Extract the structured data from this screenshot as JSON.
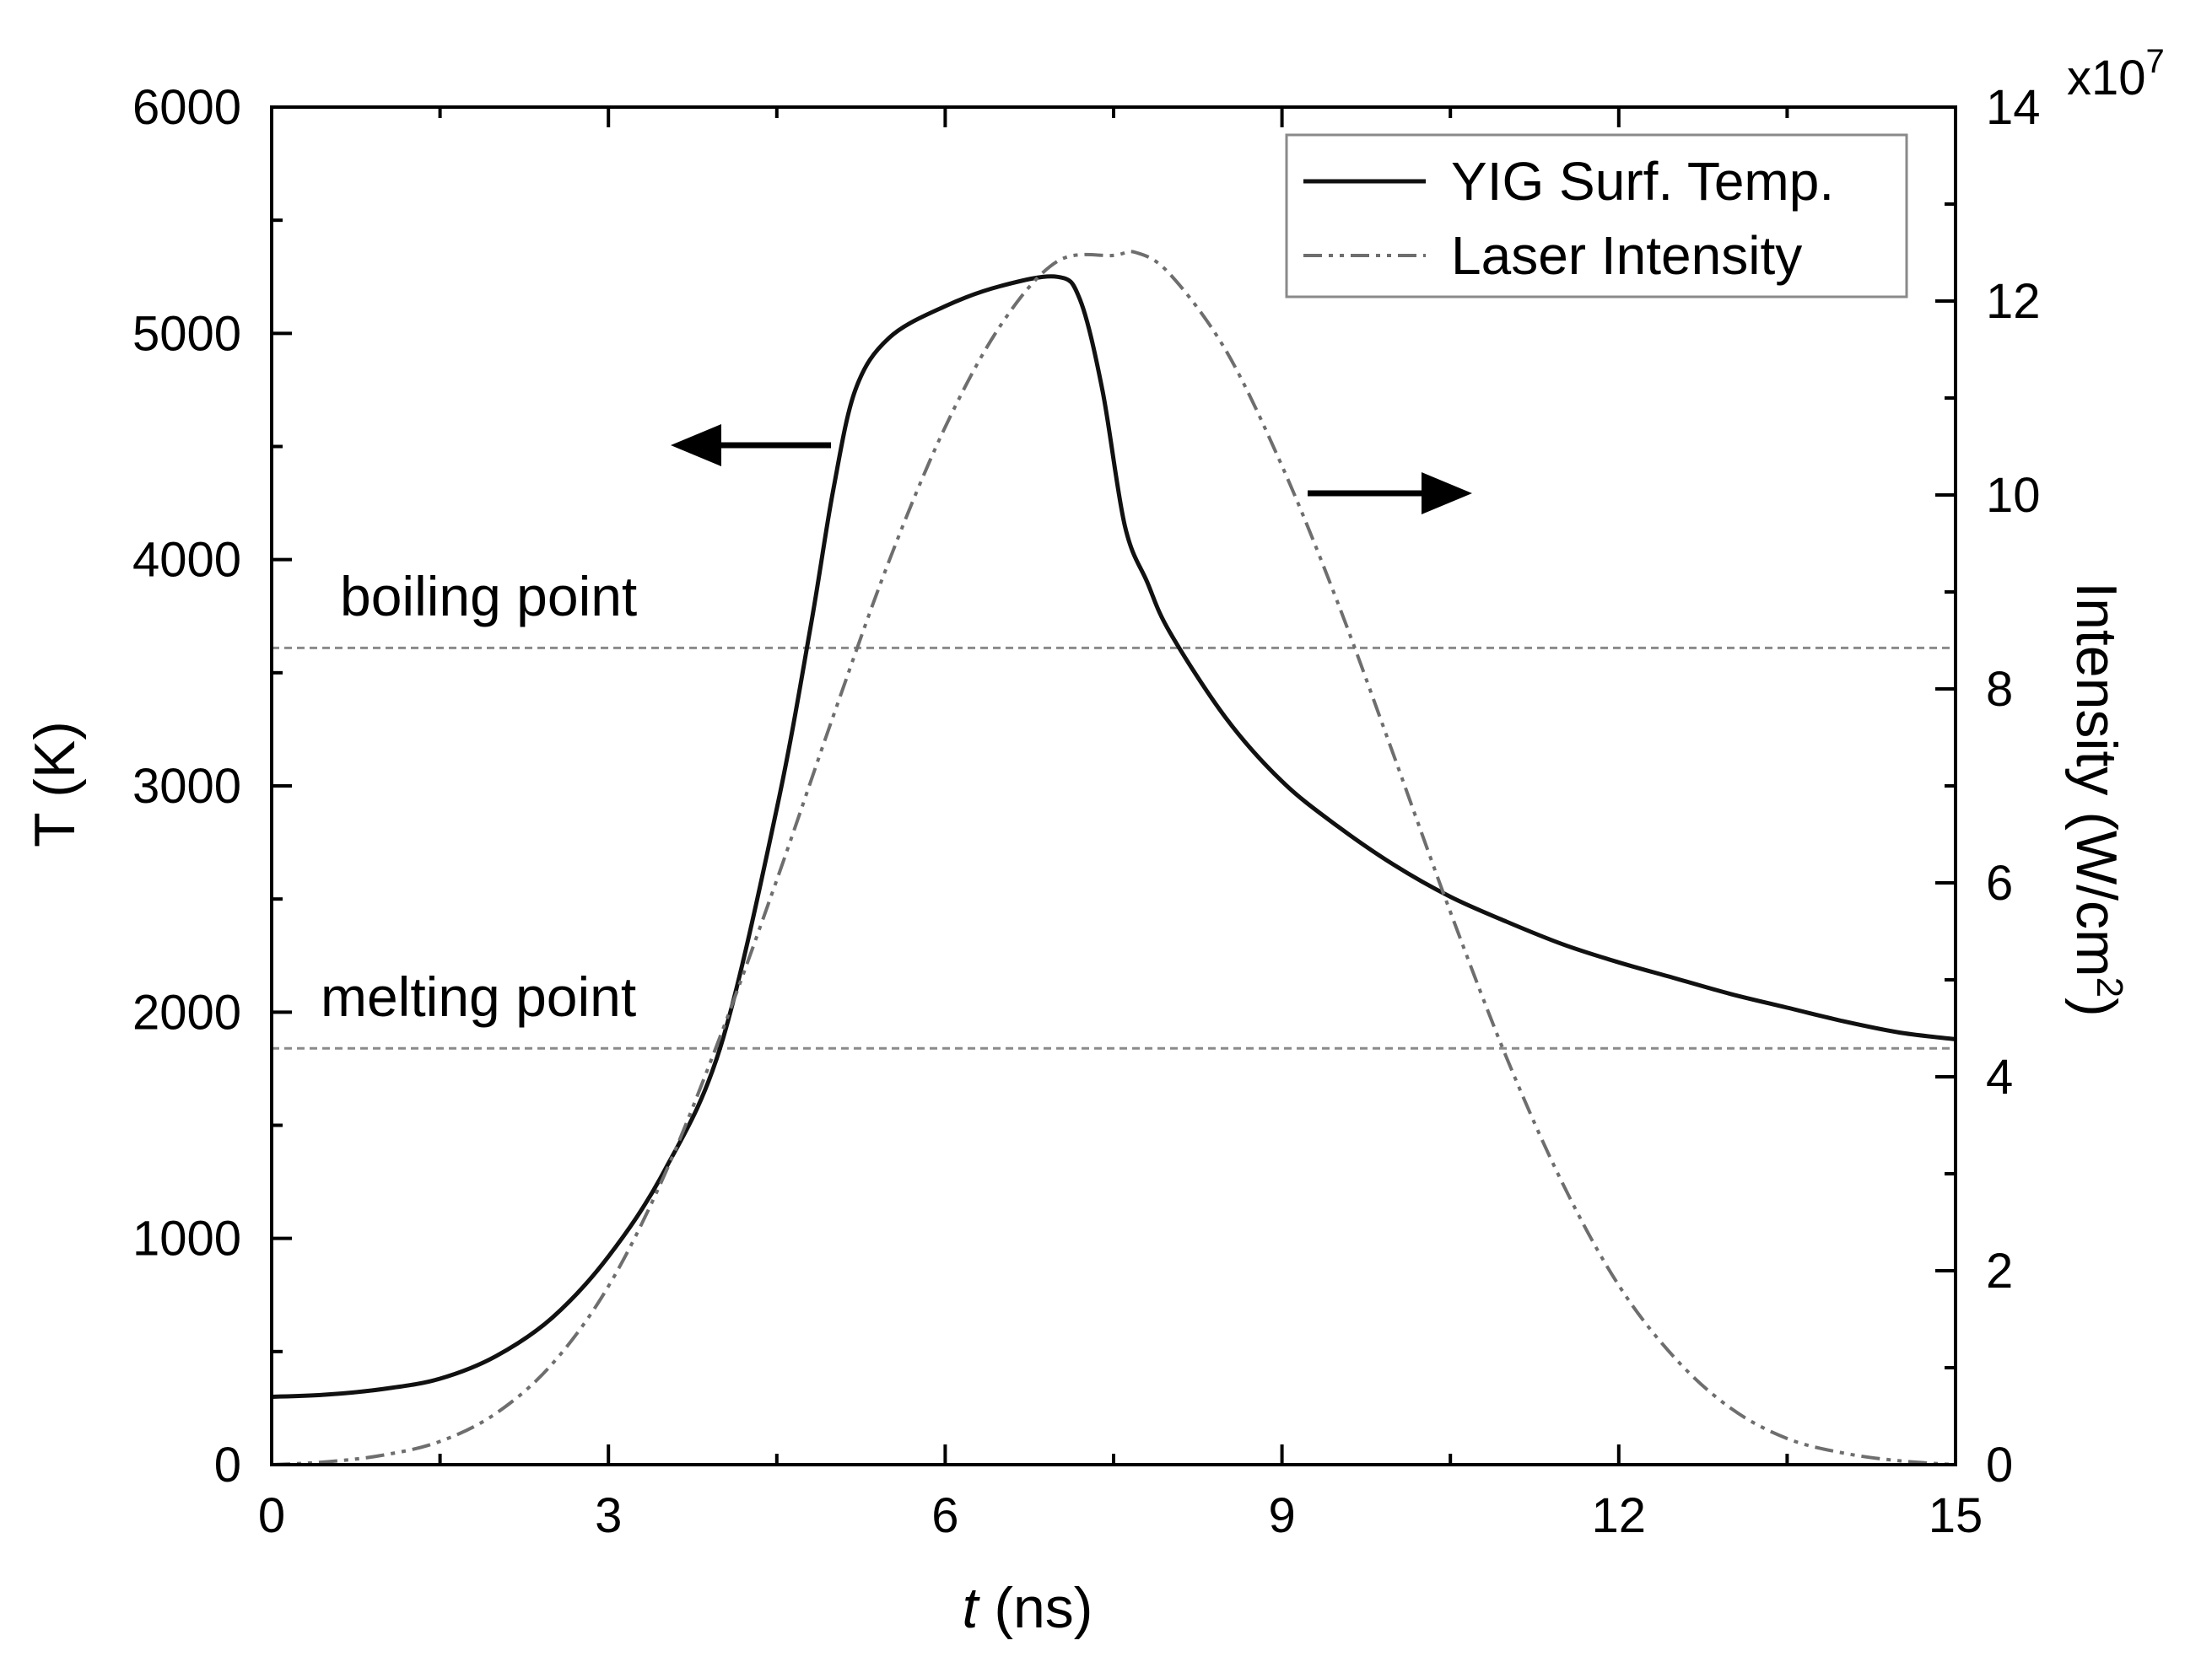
{
  "chart_data": {
    "type": "line",
    "x_axis": {
      "label_italic": "t",
      "label_rest": " (ns)",
      "range": [
        0,
        15
      ],
      "ticks": [
        0,
        3,
        6,
        9,
        12,
        15
      ]
    },
    "y_left": {
      "label": "T (K)",
      "range": [
        0,
        6000
      ],
      "ticks": [
        0,
        1000,
        2000,
        3000,
        4000,
        5000,
        6000
      ]
    },
    "y_right": {
      "label_main": "Intensity (W/cm",
      "label_sup": "2",
      "label_close": ")",
      "range": [
        0,
        14
      ],
      "ticks": [
        0,
        2,
        4,
        6,
        8,
        10,
        12,
        14
      ],
      "multiplier_base": "x10",
      "multiplier_exp": "7"
    },
    "series": [
      {
        "name": "YIG Surf. Temp.",
        "axis": "left",
        "style": "solid",
        "color": "#111111",
        "x": [
          0,
          0.5,
          1.0,
          1.5,
          2.0,
          2.5,
          3.0,
          3.5,
          4.0,
          4.5,
          4.8,
          5.0,
          5.2,
          5.5,
          6.0,
          6.5,
          7.0,
          7.2,
          7.4,
          7.6,
          7.8,
          8.0,
          8.5,
          9.0,
          9.5,
          10.0,
          10.5,
          11.0,
          11.5,
          12.0,
          12.5,
          13.0,
          13.5,
          14.0,
          14.5,
          15.0
        ],
        "values": [
          300,
          310,
          335,
          380,
          480,
          650,
          920,
          1300,
          1850,
          2900,
          3700,
          4300,
          4750,
          4980,
          5120,
          5210,
          5250,
          5150,
          4750,
          4150,
          3900,
          3680,
          3300,
          3020,
          2820,
          2650,
          2510,
          2400,
          2300,
          2220,
          2150,
          2080,
          2020,
          1960,
          1910,
          1880
        ]
      },
      {
        "name": "Laser Intensity",
        "axis": "right",
        "style": "dash-dot-dot",
        "color": "#6e6e6e",
        "peak": 12.5,
        "peak_x": 7.7,
        "width_sigma": 1.7,
        "x": [
          0,
          0.5,
          1.0,
          1.5,
          2.0,
          2.5,
          3.0,
          3.5,
          4.0,
          4.5,
          5.0,
          5.5,
          6.0,
          6.5,
          7.0,
          7.5,
          7.7,
          8.0,
          8.5,
          9.0,
          9.5,
          10.0,
          10.5,
          11.0,
          11.5,
          12.0,
          12.5,
          13.0,
          13.5,
          14.0,
          14.5,
          15.0
        ],
        "values": [
          0.0,
          0.03,
          0.1,
          0.24,
          0.53,
          1.04,
          1.84,
          2.99,
          4.43,
          6.03,
          7.71,
          9.32,
          10.7,
          11.76,
          12.41,
          12.47,
          12.5,
          12.28,
          11.49,
          10.3,
          8.88,
          7.3,
          5.7,
          4.2,
          2.9,
          1.85,
          1.1,
          0.58,
          0.27,
          0.12,
          0.04,
          0.0
        ]
      }
    ],
    "reference_lines": [
      {
        "label": "boiling point",
        "y": 3610
      },
      {
        "label": "melting point",
        "y": 1840
      }
    ],
    "arrows": [
      {
        "direction": "left",
        "target_axis": "left"
      },
      {
        "direction": "right",
        "target_axis": "right"
      }
    ],
    "legend": {
      "position": "top-right",
      "entries": [
        "YIG Surf. Temp.",
        "Laser Intensity"
      ]
    }
  }
}
